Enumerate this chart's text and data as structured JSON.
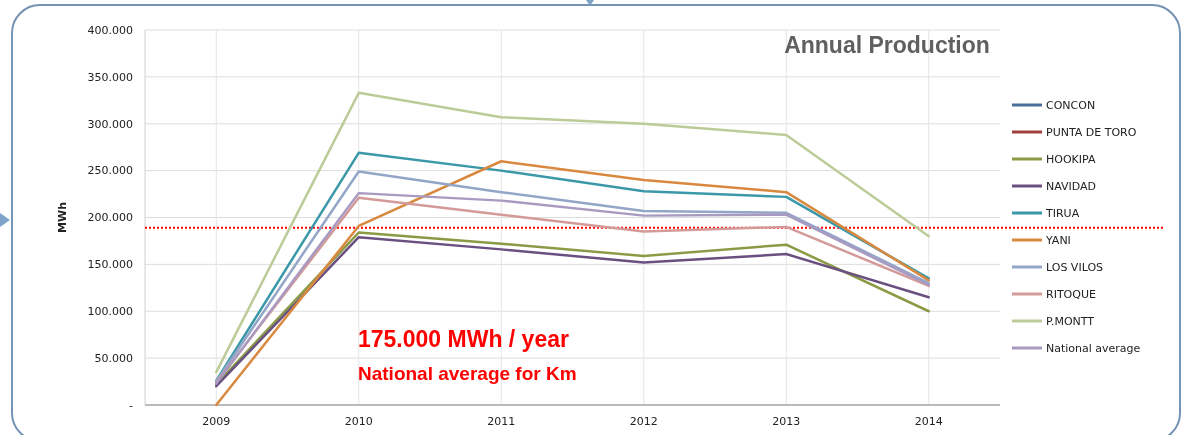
{
  "chart_data": {
    "type": "line",
    "title": "Annual Production",
    "ylabel": "MWh",
    "categories": [
      "2009",
      "2010",
      "2011",
      "2012",
      "2013",
      "2014"
    ],
    "series": [
      {
        "name": "CONCON",
        "color": "#4a6f9a",
        "values": [
          null,
          null,
          null,
          null,
          null,
          null
        ]
      },
      {
        "name": "PUNTA DE TORO",
        "color": "#a0403d",
        "values": [
          null,
          null,
          null,
          null,
          null,
          null
        ]
      },
      {
        "name": "HOOKIPA",
        "color": "#8a9a45",
        "values": [
          22000,
          184000,
          172000,
          159000,
          171000,
          100000
        ]
      },
      {
        "name": "NAVIDAD",
        "color": "#6a5080",
        "values": [
          20000,
          179000,
          166000,
          152000,
          161000,
          115000
        ]
      },
      {
        "name": "TIRUA",
        "color": "#3a98a8",
        "values": [
          26000,
          269000,
          250000,
          228000,
          222000,
          135000
        ]
      },
      {
        "name": "YANI",
        "color": "#d9893f",
        "values": [
          0,
          191000,
          260000,
          240000,
          227000,
          133000
        ]
      },
      {
        "name": "LOS VILOS",
        "color": "#93a6c8",
        "values": [
          25000,
          249000,
          227000,
          207000,
          205000,
          130000
        ]
      },
      {
        "name": "RITOQUE",
        "color": "#d39a98",
        "values": [
          24000,
          221000,
          203000,
          185000,
          190000,
          127000
        ]
      },
      {
        "name": "P.MONTT",
        "color": "#bccc98",
        "values": [
          35000,
          333000,
          307000,
          300000,
          288000,
          180000
        ]
      },
      {
        "name": "National average",
        "color": "#a89ac0",
        "values": [
          23000,
          226000,
          218000,
          202000,
          203000,
          128000
        ]
      }
    ],
    "ylim": [
      0,
      400000
    ],
    "yticks": [
      {
        "value": 0,
        "label": "-"
      },
      {
        "value": 50000,
        "label": "50.000"
      },
      {
        "value": 100000,
        "label": "100.000"
      },
      {
        "value": 150000,
        "label": "150.000"
      },
      {
        "value": 200000,
        "label": "200.000"
      },
      {
        "value": 250000,
        "label": "250.000"
      },
      {
        "value": 300000,
        "label": "300.000"
      },
      {
        "value": 350000,
        "label": "350.000"
      },
      {
        "value": 400000,
        "label": "400.000"
      }
    ],
    "grid": true,
    "legend": "right",
    "marker": "none",
    "line_style": "solid",
    "ref_lines": [
      {
        "axis": "y",
        "value": 189000,
        "color": "#ff0000",
        "line_style": "dotted"
      }
    ],
    "annotations": [
      "175.000 MWh / year",
      "National average for Km"
    ]
  }
}
